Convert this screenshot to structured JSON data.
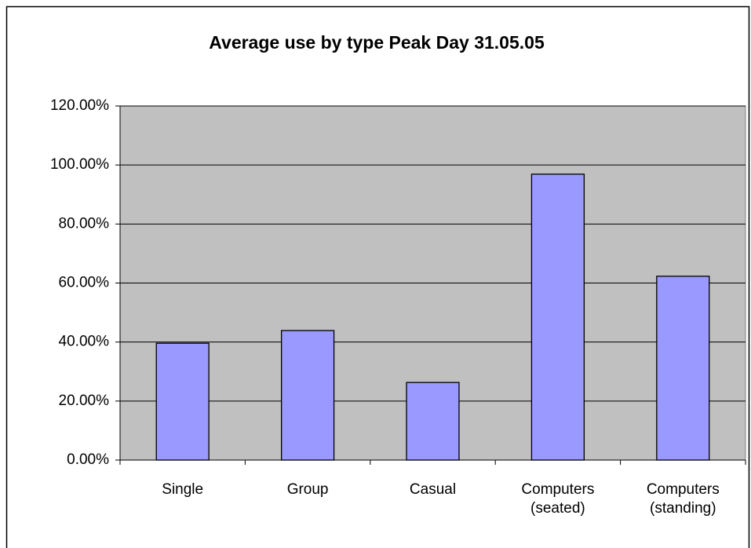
{
  "chart_data": {
    "type": "bar",
    "title": "Average use by type Peak Day 31.05.05",
    "categories": [
      "Single",
      "Group",
      "Casual",
      "Computers (seated)",
      "Computers (standing)"
    ],
    "values": [
      39.6,
      43.9,
      26.3,
      96.9,
      62.3
    ],
    "color": "#9999ff",
    "ylim": [
      0,
      120
    ],
    "yticks": [
      {
        "value": 0,
        "label": "0.00%"
      },
      {
        "value": 20,
        "label": "20.00%"
      },
      {
        "value": 40,
        "label": "40.00%"
      },
      {
        "value": 60,
        "label": "60.00%"
      },
      {
        "value": 80,
        "label": "80.00%"
      },
      {
        "value": 100,
        "label": "100.00%"
      },
      {
        "value": 120,
        "label": "120.00%"
      }
    ],
    "grid": true
  }
}
